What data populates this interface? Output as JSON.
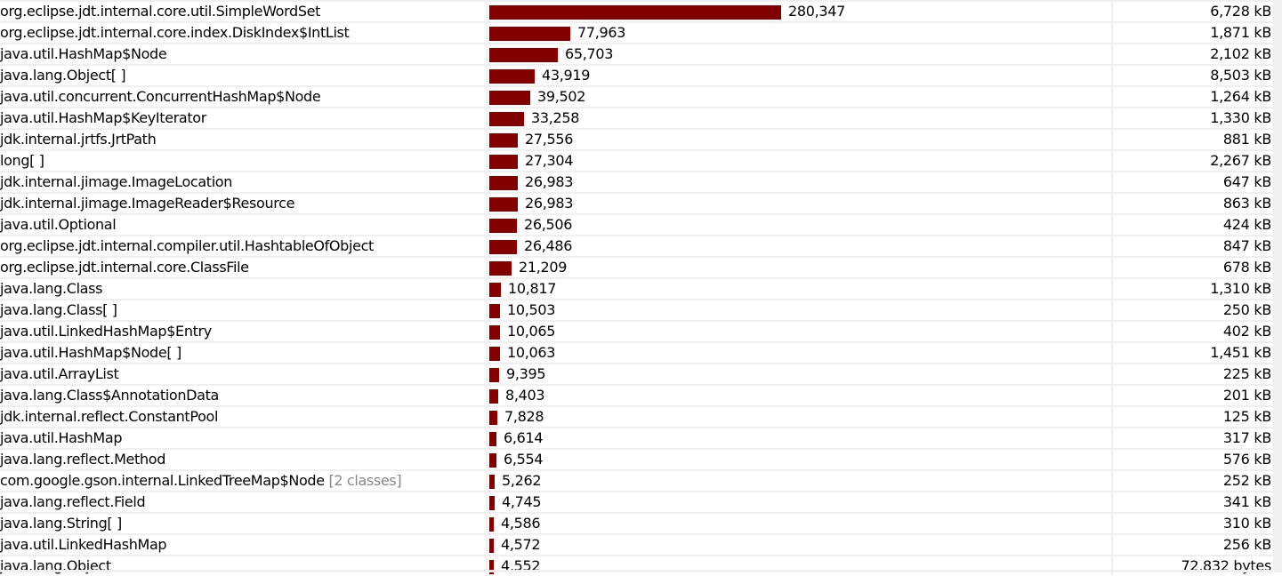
{
  "colors": {
    "bar": "#800000",
    "extra_text": "#888888"
  },
  "max_count": 280347,
  "rows": [
    {
      "name": "org.eclipse.jdt.internal.core.util.SimpleWordSet",
      "count": 280347,
      "count_label": "280,347",
      "size": "6,728 kB"
    },
    {
      "name": "org.eclipse.jdt.internal.core.index.DiskIndex$IntList",
      "count": 77963,
      "count_label": "77,963",
      "size": "1,871 kB"
    },
    {
      "name": "java.util.HashMap$Node",
      "count": 65703,
      "count_label": "65,703",
      "size": "2,102 kB"
    },
    {
      "name": "java.lang.Object[ ]",
      "count": 43919,
      "count_label": "43,919",
      "size": "8,503 kB"
    },
    {
      "name": "java.util.concurrent.ConcurrentHashMap$Node",
      "count": 39502,
      "count_label": "39,502",
      "size": "1,264 kB"
    },
    {
      "name": "java.util.HashMap$KeyIterator",
      "count": 33258,
      "count_label": "33,258",
      "size": "1,330 kB"
    },
    {
      "name": "jdk.internal.jrtfs.JrtPath",
      "count": 27556,
      "count_label": "27,556",
      "size": "881 kB"
    },
    {
      "name": "long[ ]",
      "count": 27304,
      "count_label": "27,304",
      "size": "2,267 kB"
    },
    {
      "name": "jdk.internal.jimage.ImageLocation",
      "count": 26983,
      "count_label": "26,983",
      "size": "647 kB"
    },
    {
      "name": "jdk.internal.jimage.ImageReader$Resource",
      "count": 26983,
      "count_label": "26,983",
      "size": "863 kB"
    },
    {
      "name": "java.util.Optional",
      "count": 26506,
      "count_label": "26,506",
      "size": "424 kB"
    },
    {
      "name": "org.eclipse.jdt.internal.compiler.util.HashtableOfObject",
      "count": 26486,
      "count_label": "26,486",
      "size": "847 kB"
    },
    {
      "name": "org.eclipse.jdt.internal.core.ClassFile",
      "count": 21209,
      "count_label": "21,209",
      "size": "678 kB"
    },
    {
      "name": "java.lang.Class",
      "count": 10817,
      "count_label": "10,817",
      "size": "1,310 kB"
    },
    {
      "name": "java.lang.Class[ ]",
      "count": 10503,
      "count_label": "10,503",
      "size": "250 kB"
    },
    {
      "name": "java.util.LinkedHashMap$Entry",
      "count": 10065,
      "count_label": "10,065",
      "size": "402 kB"
    },
    {
      "name": "java.util.HashMap$Node[ ]",
      "count": 10063,
      "count_label": "10,063",
      "size": "1,451 kB"
    },
    {
      "name": "java.util.ArrayList",
      "count": 9395,
      "count_label": "9,395",
      "size": "225 kB"
    },
    {
      "name": "java.lang.Class$AnnotationData",
      "count": 8403,
      "count_label": "8,403",
      "size": "201 kB"
    },
    {
      "name": "jdk.internal.reflect.ConstantPool",
      "count": 7828,
      "count_label": "7,828",
      "size": "125 kB"
    },
    {
      "name": "java.util.HashMap",
      "count": 6614,
      "count_label": "6,614",
      "size": "317 kB"
    },
    {
      "name": "java.lang.reflect.Method",
      "count": 6554,
      "count_label": "6,554",
      "size": "576 kB"
    },
    {
      "name": "com.google.gson.internal.LinkedTreeMap$Node",
      "extra": "[2 classes]",
      "count": 5262,
      "count_label": "5,262",
      "size": "252 kB"
    },
    {
      "name": "java.lang.reflect.Field",
      "count": 4745,
      "count_label": "4,745",
      "size": "341 kB"
    },
    {
      "name": "java.lang.String[ ]",
      "count": 4586,
      "count_label": "4,586",
      "size": "310 kB"
    },
    {
      "name": "java.util.LinkedHashMap",
      "count": 4572,
      "count_label": "4,572",
      "size": "256 kB"
    },
    {
      "name": "java.lang.Object",
      "count": 4552,
      "count_label": "4,552",
      "size": "72,832 bytes"
    }
  ]
}
